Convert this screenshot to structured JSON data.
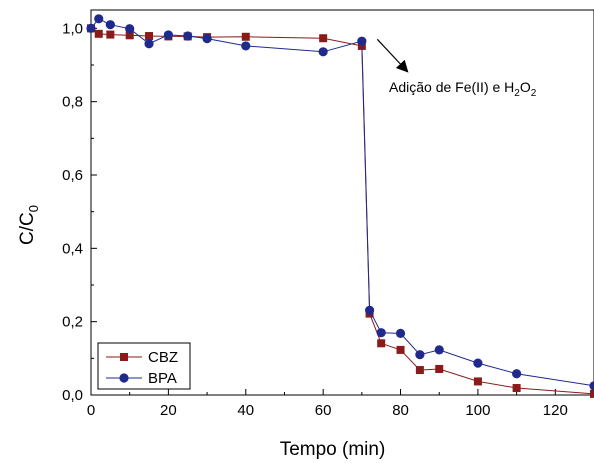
{
  "chart_data": {
    "type": "line",
    "xlabel": "Tempo (min)",
    "ylabel_main": "C/C",
    "ylabel_sub": "0",
    "xlim": [
      0,
      130
    ],
    "ylim": [
      0,
      1.05
    ],
    "x_ticks": [
      0,
      20,
      40,
      60,
      80,
      100,
      120
    ],
    "y_ticks": [
      {
        "value": 0.0,
        "label": "0,0"
      },
      {
        "value": 0.2,
        "label": "0,2"
      },
      {
        "value": 0.4,
        "label": "0,4"
      },
      {
        "value": 0.6,
        "label": "0,6"
      },
      {
        "value": 0.8,
        "label": "0,8"
      },
      {
        "value": 1.0,
        "label": "1,0"
      }
    ],
    "series": [
      {
        "name": "CBZ",
        "marker": "square",
        "color": "#8b1a1a",
        "x": [
          0,
          2,
          5,
          10,
          15,
          20,
          25,
          30,
          40,
          60,
          70,
          72,
          75,
          80,
          85,
          90,
          100,
          110,
          130
        ],
        "y": [
          1.0,
          0.985,
          0.983,
          0.981,
          0.979,
          0.978,
          0.978,
          0.976,
          0.977,
          0.973,
          0.952,
          0.222,
          0.141,
          0.123,
          0.068,
          0.071,
          0.037,
          0.019,
          0.003
        ]
      },
      {
        "name": "BPA",
        "marker": "circle",
        "color": "#1f2a8c",
        "x": [
          0,
          2,
          5,
          10,
          15,
          20,
          25,
          30,
          40,
          60,
          70,
          72,
          75,
          80,
          85,
          90,
          100,
          110,
          130
        ],
        "y": [
          1.0,
          1.026,
          1.01,
          0.999,
          0.958,
          0.982,
          0.979,
          0.972,
          0.952,
          0.936,
          0.965,
          0.231,
          0.17,
          0.168,
          0.11,
          0.123,
          0.087,
          0.058,
          0.025
        ]
      }
    ],
    "annotation": {
      "text_main": "Adição de Fe(II) e H",
      "sub1": "2",
      "text_mid": "O",
      "sub2": "2",
      "arrow_from": [
        74,
        0.97
      ]
    },
    "legend": {
      "position": "bottom-left",
      "entries": [
        "CBZ",
        "BPA"
      ]
    }
  }
}
